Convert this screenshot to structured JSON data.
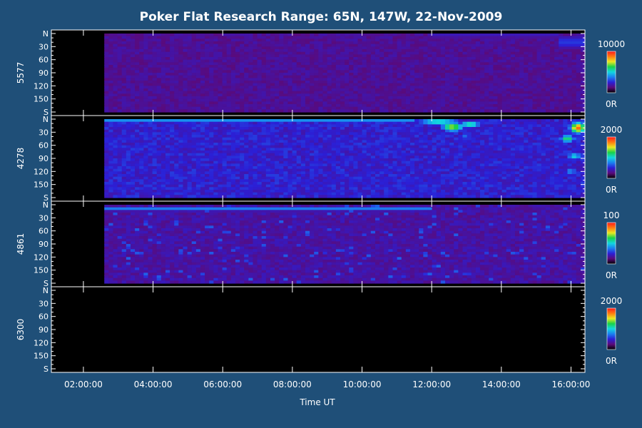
{
  "background_color": "#1f4f78",
  "chart_data": {
    "type": "heatmap",
    "title": "Poker Flat Research Range: 65N, 147W, 22-Nov-2009",
    "xlabel": "Time UT",
    "x_tick_labels": [
      "02:00:00",
      "04:00:00",
      "06:00:00",
      "08:00:00",
      "10:00:00",
      "12:00:00",
      "14:00:00",
      "16:00:00"
    ],
    "x_tick_hours": [
      2,
      4,
      6,
      8,
      10,
      12,
      14,
      16
    ],
    "xlim_hours": [
      1.08,
      16.4
    ],
    "data_start_hour": 2.6,
    "y_tick_labels": [
      "N",
      "30",
      "60",
      "90",
      "120",
      "150",
      "S"
    ],
    "y_tick_values": [
      0,
      30,
      60,
      90,
      120,
      150,
      180
    ],
    "ylim_deg": [
      0,
      180
    ],
    "colorscale": [
      "#000000",
      "#5a0a7a",
      "#2b1fd6",
      "#1a7ff0",
      "#12d6e0",
      "#18d24a",
      "#e8e820",
      "#ff7a10",
      "#ff1a1a"
    ],
    "panels": [
      {
        "ylabel": "5577",
        "colorbar_max": "10000",
        "colorbar_min": "0R",
        "base_intensity": 0.16,
        "features": [
          {
            "kind": "band",
            "deg_center": 5,
            "deg_width": 8,
            "t0": 12.0,
            "t1": 15.6,
            "level": 0.22
          },
          {
            "kind": "band",
            "deg_center": 20,
            "deg_width": 20,
            "t0": 15.6,
            "t1": 16.4,
            "level": 0.28
          }
        ]
      },
      {
        "ylabel": "4278",
        "colorbar_max": "2000",
        "colorbar_min": "0R",
        "base_intensity": 0.24,
        "features": [
          {
            "kind": "band",
            "deg_center": 3,
            "deg_width": 4,
            "t0": 2.6,
            "t1": 11.5,
            "level": 0.4
          },
          {
            "kind": "blob",
            "t": 12.2,
            "deg": 6,
            "dt": 0.7,
            "ddeg": 10,
            "level": 0.55
          },
          {
            "kind": "blob",
            "t": 12.6,
            "deg": 18,
            "dt": 0.35,
            "ddeg": 12,
            "level": 0.72
          },
          {
            "kind": "blob",
            "t": 13.1,
            "deg": 12,
            "dt": 0.35,
            "ddeg": 8,
            "level": 0.6
          },
          {
            "kind": "blob",
            "t": 12.9,
            "deg": 40,
            "dt": 0.1,
            "ddeg": 10,
            "level": 0.45
          },
          {
            "kind": "blob",
            "t": 16.2,
            "deg": 20,
            "dt": 0.25,
            "ddeg": 14,
            "level": 0.9
          },
          {
            "kind": "blob",
            "t": 15.9,
            "deg": 45,
            "dt": 0.25,
            "ddeg": 10,
            "level": 0.62
          },
          {
            "kind": "blob",
            "t": 16.1,
            "deg": 85,
            "dt": 0.25,
            "ddeg": 10,
            "level": 0.5
          },
          {
            "kind": "blob",
            "t": 16.0,
            "deg": 120,
            "dt": 0.2,
            "ddeg": 12,
            "level": 0.4
          }
        ]
      },
      {
        "ylabel": "4861",
        "colorbar_max": "100",
        "colorbar_min": "0R",
        "base_intensity": 0.18,
        "noisy": true,
        "features": [
          {
            "kind": "band",
            "deg_center": 10,
            "deg_width": 6,
            "t0": 2.6,
            "t1": 12.0,
            "level": 0.38
          },
          {
            "kind": "blob",
            "t": 3.6,
            "deg": 110,
            "dt": 0.12,
            "ddeg": 3,
            "level": 0.45
          },
          {
            "kind": "blob",
            "t": 13.0,
            "deg": 160,
            "dt": 0.3,
            "ddeg": 5,
            "level": 0.3
          }
        ]
      },
      {
        "ylabel": "6300",
        "colorbar_max": "2000",
        "colorbar_min": "0R",
        "base_intensity": 0.0,
        "features": []
      }
    ]
  }
}
